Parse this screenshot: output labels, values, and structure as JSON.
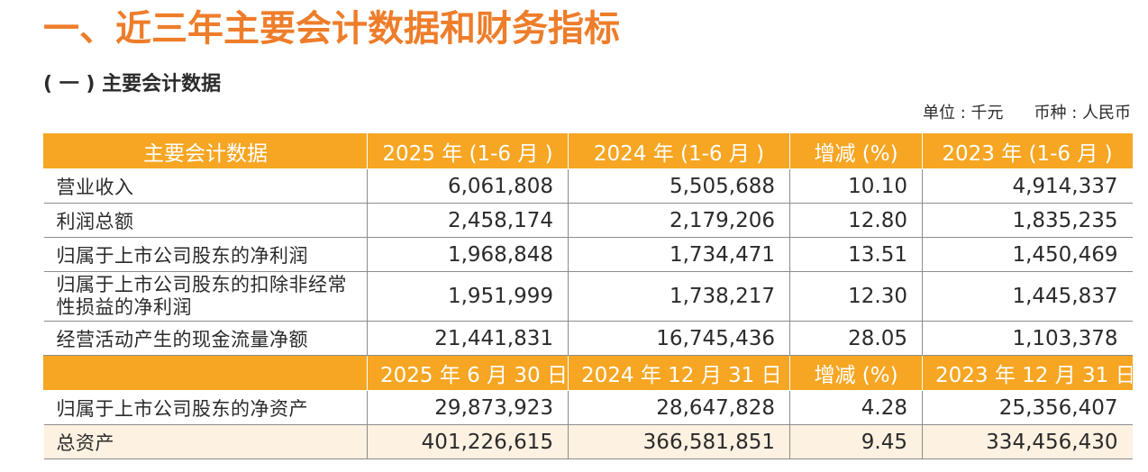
{
  "page": {
    "main_title": "一、近三年主要会计数据和财务指标",
    "sub_title": "( 一 ) 主要会计数据",
    "unit_label": "单位 : 千元",
    "currency_label": "币种 : 人民币"
  },
  "table": {
    "header1": [
      "主要会计数据",
      "2025 年 (1-6 月 )",
      "2024 年 (1-6 月 )",
      "增减 (%)",
      "2023 年 (1-6 月 )"
    ],
    "rows1": [
      {
        "label": "营业收入",
        "values": [
          "6,061,808",
          "5,505,688",
          "10.10",
          "4,914,337"
        ]
      },
      {
        "label": "利润总额",
        "values": [
          "2,458,174",
          "2,179,206",
          "12.80",
          "1,835,235"
        ]
      },
      {
        "label": "归属于上市公司股东的净利润",
        "values": [
          "1,968,848",
          "1,734,471",
          "13.51",
          "1,450,469"
        ]
      },
      {
        "label": "归属于上市公司股东的扣除非经常性损益的净利润",
        "values": [
          "1,951,999",
          "1,738,217",
          "12.30",
          "1,445,837"
        ]
      },
      {
        "label": "经营活动产生的现金流量净额",
        "values": [
          "21,441,831",
          "16,745,436",
          "28.05",
          "1,103,378"
        ]
      }
    ],
    "header2": [
      "",
      "2025 年 6 月 30 日",
      "2024 年 12 月 31 日",
      "增减 (%)",
      "2023 年 12 月 31 日"
    ],
    "rows2": [
      {
        "label": "归属于上市公司股东的净资产",
        "values": [
          "29,873,923",
          "28,647,828",
          "4.28",
          "25,356,407"
        ]
      },
      {
        "label": "总资产",
        "values": [
          "401,226,615",
          "366,581,851",
          "9.45",
          "334,456,430"
        ]
      }
    ]
  }
}
